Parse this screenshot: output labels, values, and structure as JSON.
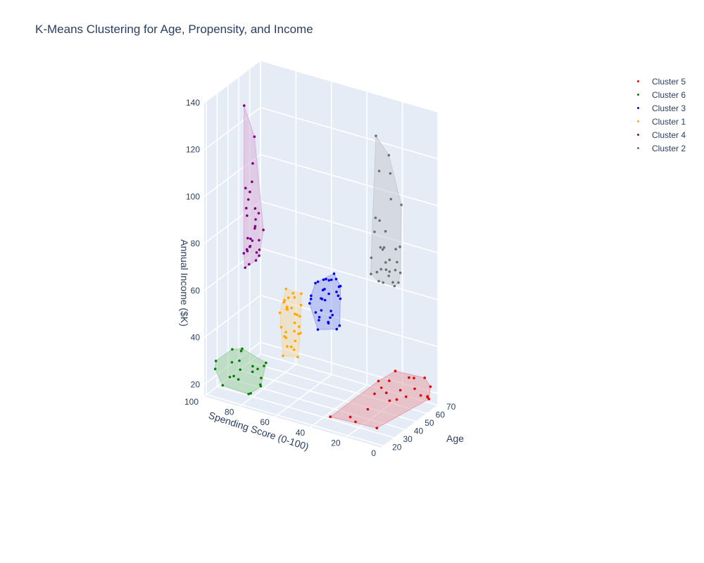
{
  "title": "K-Means Clustering for Age, Propensity, and Income",
  "chart_data": {
    "type": "scatter3d",
    "title": "K-Means Clustering for Age, Propensity, and Income",
    "axes": {
      "x": {
        "label": "Spending Score (0-100)",
        "range": [
          0,
          100
        ],
        "ticks": [
          "100",
          "80",
          "60",
          "40",
          "20",
          "0"
        ]
      },
      "y": {
        "label": "Age",
        "range": [
          18,
          70
        ],
        "ticks": [
          "20",
          "30",
          "40",
          "50",
          "60",
          "70"
        ]
      },
      "z": {
        "label": "Annual Income ($K)",
        "range": [
          15,
          140
        ],
        "ticks": [
          "20",
          "40",
          "60",
          "80",
          "100",
          "120",
          "140"
        ]
      }
    },
    "grid": true,
    "legend_position": "top-right",
    "series": [
      {
        "name": "Cluster 5",
        "color": "#e00000",
        "hull_fill": "#e8a0a8",
        "points": [
          [
            12,
            55,
            24
          ],
          [
            6,
            64,
            20
          ],
          [
            8,
            61,
            28
          ],
          [
            4,
            67,
            19
          ],
          [
            15,
            47,
            25
          ],
          [
            16,
            44,
            28
          ],
          [
            10,
            57,
            21
          ],
          [
            3,
            68,
            23
          ],
          [
            14,
            48,
            30
          ],
          [
            18,
            41,
            26
          ],
          [
            13,
            52,
            33
          ],
          [
            2,
            65,
            19
          ],
          [
            7,
            60,
            24
          ],
          [
            11,
            50,
            22
          ],
          [
            5,
            66,
            27
          ],
          [
            9,
            58,
            29
          ],
          [
            20,
            38,
            20
          ],
          [
            17,
            43,
            31
          ],
          [
            1,
            62,
            21
          ],
          [
            12,
            45,
            23
          ],
          [
            22,
            30,
            17
          ],
          [
            35,
            28,
            17
          ],
          [
            28,
            35,
            16
          ],
          [
            10,
            30,
            17
          ]
        ]
      },
      {
        "name": "Cluster 6",
        "color": "#008000",
        "hull_fill": "#a0d0a0",
        "points": [
          [
            78,
            23,
            19
          ],
          [
            92,
            22,
            20
          ],
          [
            85,
            25,
            23
          ],
          [
            74,
            28,
            25
          ],
          [
            95,
            20,
            27
          ],
          [
            80,
            30,
            28
          ],
          [
            88,
            24,
            30
          ],
          [
            70,
            26,
            33
          ],
          [
            82,
            21,
            33
          ],
          [
            76,
            31,
            20
          ],
          [
            90,
            29,
            22
          ],
          [
            84,
            26,
            35
          ],
          [
            72,
            24,
            24
          ],
          [
            94,
            19,
            31
          ],
          [
            79,
            33,
            26
          ],
          [
            86,
            21,
            37
          ],
          [
            73,
            29,
            30
          ],
          [
            91,
            27,
            22
          ],
          [
            77,
            25,
            28
          ],
          [
            81,
            22,
            38
          ],
          [
            87,
            30,
            25
          ],
          [
            75,
            20,
            21
          ]
        ]
      },
      {
        "name": "Cluster 3",
        "color": "#0000ee",
        "hull_fill": "#9ca8f0",
        "points": [
          [
            45,
            43,
            62
          ],
          [
            50,
            45,
            58
          ],
          [
            52,
            49,
            60
          ],
          [
            48,
            41,
            55
          ],
          [
            55,
            47,
            63
          ],
          [
            44,
            50,
            59
          ],
          [
            49,
            52,
            64
          ],
          [
            53,
            44,
            52
          ],
          [
            47,
            46,
            48
          ],
          [
            51,
            48,
            65
          ],
          [
            46,
            54,
            61
          ],
          [
            54,
            40,
            57
          ],
          [
            50,
            42,
            50
          ],
          [
            43,
            47,
            46
          ],
          [
            56,
            51,
            62
          ],
          [
            48,
            55,
            58
          ],
          [
            52,
            38,
            60
          ],
          [
            45,
            45,
            54
          ],
          [
            49,
            49,
            47
          ],
          [
            51,
            53,
            63
          ],
          [
            47,
            39,
            61
          ],
          [
            53,
            46,
            44
          ],
          [
            44,
            52,
            57
          ],
          [
            50,
            56,
            65
          ],
          [
            55,
            43,
            59
          ],
          [
            46,
            48,
            51
          ],
          [
            48,
            44,
            63
          ],
          [
            52,
            51,
            55
          ],
          [
            47,
            57,
            60
          ],
          [
            43,
            41,
            53
          ],
          [
            54,
            49,
            48
          ],
          [
            49,
            47,
            66
          ],
          [
            50,
            58,
            62
          ],
          [
            45,
            53,
            45
          ]
        ]
      },
      {
        "name": "Cluster 1",
        "color": "#ffa500",
        "hull_fill": "#f3d8a8",
        "points": [
          [
            55,
            25,
            60
          ],
          [
            58,
            27,
            63
          ],
          [
            52,
            23,
            55
          ],
          [
            60,
            29,
            58
          ],
          [
            57,
            31,
            62
          ],
          [
            54,
            26,
            50
          ],
          [
            59,
            22,
            52
          ],
          [
            56,
            28,
            65
          ],
          [
            61,
            24,
            57
          ],
          [
            53,
            30,
            48
          ],
          [
            58,
            33,
            54
          ],
          [
            55,
            21,
            45
          ],
          [
            60,
            26,
            61
          ],
          [
            57,
            28,
            42
          ],
          [
            54,
            32,
            59
          ],
          [
            59,
            25,
            47
          ],
          [
            56,
            30,
            44
          ],
          [
            52,
            27,
            52
          ],
          [
            61,
            31,
            56
          ],
          [
            58,
            22,
            40
          ],
          [
            55,
            34,
            63
          ],
          [
            53,
            24,
            43
          ],
          [
            60,
            28,
            66
          ],
          [
            57,
            23,
            50
          ],
          [
            54,
            29,
            38
          ],
          [
            59,
            27,
            58
          ],
          [
            56,
            33,
            46
          ],
          [
            62,
            30,
            60
          ],
          [
            51,
            26,
            57
          ],
          [
            58,
            35,
            53
          ],
          [
            55,
            20,
            49
          ]
        ]
      },
      {
        "name": "Cluster 4",
        "color": "#800080",
        "hull_fill": "#d8b0d8",
        "points": [
          [
            85,
            30,
            75
          ],
          [
            82,
            33,
            80
          ],
          [
            80,
            32,
            86
          ],
          [
            78,
            29,
            96
          ],
          [
            84,
            34,
            100
          ],
          [
            81,
            31,
            106
          ],
          [
            83,
            35,
            112
          ],
          [
            79,
            30,
            126
          ],
          [
            86,
            32,
            137
          ],
          [
            82,
            28,
            78
          ],
          [
            80,
            36,
            73
          ],
          [
            77,
            31,
            82
          ],
          [
            85,
            33,
            90
          ],
          [
            83,
            29,
            95
          ],
          [
            81,
            34,
            86
          ],
          [
            79,
            32,
            76
          ],
          [
            84,
            30,
            103
          ],
          [
            82,
            36,
            88
          ],
          [
            80,
            28,
            83
          ],
          [
            86,
            35,
            74
          ],
          [
            78,
            33,
            77
          ],
          [
            83,
            31,
            98
          ],
          [
            81,
            29,
            79
          ],
          [
            85,
            36,
            76
          ],
          [
            79,
            34,
            92
          ],
          [
            82,
            30,
            71
          ],
          [
            80,
            33,
            72
          ],
          [
            84,
            32,
            81
          ],
          [
            77,
            35,
            85
          ],
          [
            83,
            28,
            70
          ]
        ]
      },
      {
        "name": "Cluster 2",
        "color": "#6e6e6e",
        "hull_fill": "#c8ccd2",
        "points": [
          [
            15,
            40,
            75
          ],
          [
            12,
            45,
            78
          ],
          [
            18,
            38,
            85
          ],
          [
            10,
            50,
            72
          ],
          [
            14,
            42,
            88
          ],
          [
            16,
            48,
            80
          ],
          [
            11,
            35,
            92
          ],
          [
            13,
            52,
            76
          ],
          [
            17,
            44,
            99
          ],
          [
            9,
            47,
            82
          ],
          [
            15,
            37,
            103
          ],
          [
            12,
            55,
            74
          ],
          [
            18,
            41,
            95
          ],
          [
            10,
            43,
            110
          ],
          [
            14,
            49,
            118
          ],
          [
            16,
            39,
            137
          ],
          [
            11,
            53,
            86
          ],
          [
            13,
            46,
            127
          ],
          [
            17,
            36,
            79
          ],
          [
            9,
            51,
            105
          ],
          [
            15,
            44,
            73
          ],
          [
            12,
            40,
            90
          ],
          [
            18,
            47,
            77
          ],
          [
            10,
            38,
            98
          ],
          [
            14,
            54,
            84
          ],
          [
            16,
            42,
            121
          ],
          [
            11,
            48,
            71
          ],
          [
            13,
            35,
            81
          ],
          [
            17,
            50,
            76
          ],
          [
            12,
            45,
            83
          ],
          [
            15,
            53,
            70
          ],
          [
            10,
            41,
            78
          ]
        ]
      }
    ]
  }
}
